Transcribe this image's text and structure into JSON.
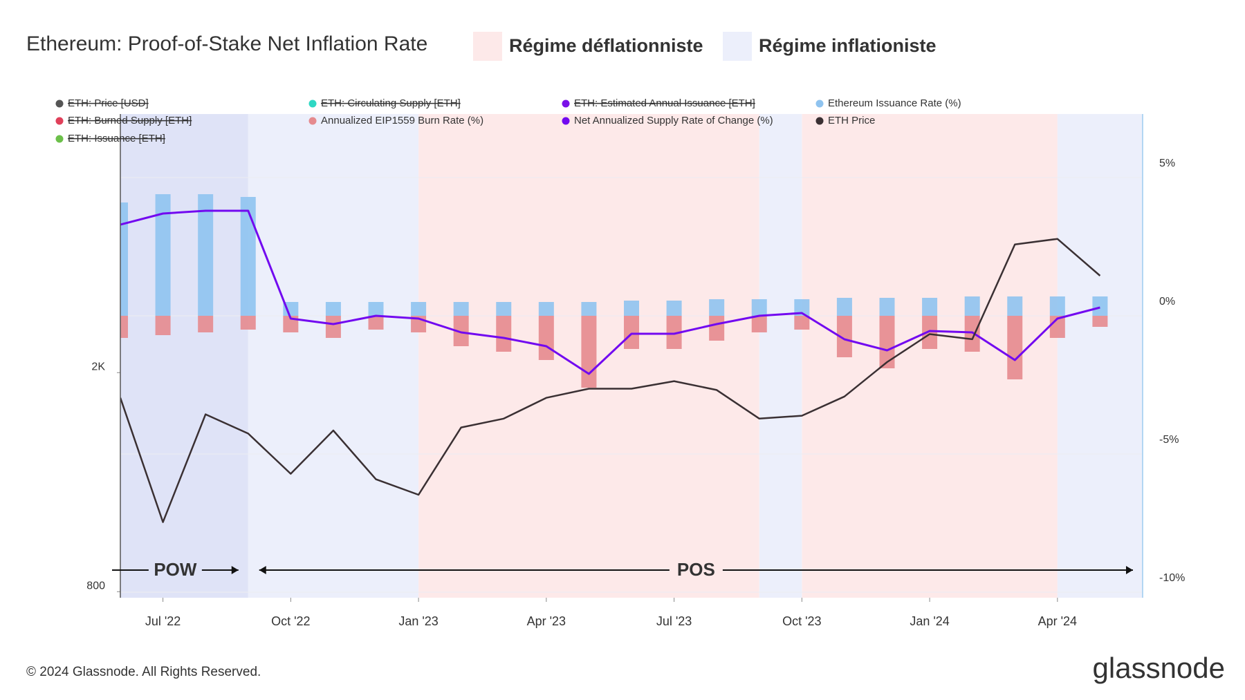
{
  "chart_data": {
    "type": "combo",
    "title": "Ethereum: Proof-of-Stake Net Inflation Rate",
    "regimes": [
      {
        "name": "Régime déflationniste",
        "color": "#fde9e9",
        "spans": [
          [
            "2023-01",
            "2023-09"
          ],
          [
            "2023-10",
            "2024-04"
          ]
        ]
      },
      {
        "name": "Régime inflationiste",
        "color": "#eceffb",
        "spans": [
          [
            "2022-09",
            "2023-01"
          ],
          [
            "2023-09",
            "2023-10"
          ],
          [
            "2024-04",
            "2024-06"
          ]
        ]
      }
    ],
    "annotations": [
      {
        "text": "POW",
        "start": "2022-06",
        "end": "2022-09",
        "color": "#dfe3f7"
      },
      {
        "text": "POS",
        "start": "2022-09",
        "end": "2024-06"
      }
    ],
    "hidden_series": [
      {
        "name": "ETH: Price [USD]",
        "color": "#555555"
      },
      {
        "name": "ETH: Circulating Supply [ETH]",
        "color": "#2fd8c4"
      },
      {
        "name": "ETH: Estimated Annual Issuance [ETH]",
        "color": "#7a12e8"
      },
      {
        "name": "ETH: Burned Supply [ETH]",
        "color": "#e0405a"
      },
      {
        "name": "ETH: Issuance [ETH]",
        "color": "#6cc04a"
      }
    ],
    "x": [
      "2022-06",
      "2022-07",
      "2022-08",
      "2022-09",
      "2022-10",
      "2022-11",
      "2022-12",
      "2023-01",
      "2023-02",
      "2023-03",
      "2023-04",
      "2023-05",
      "2023-06",
      "2023-07",
      "2023-08",
      "2023-09",
      "2023-10",
      "2023-11",
      "2023-12",
      "2024-01",
      "2024-02",
      "2024-03",
      "2024-04",
      "2024-05"
    ],
    "series": [
      {
        "name": "Ethereum Issuance Rate (%)",
        "type": "bar",
        "axis": "y2",
        "color": "#8fc3ef",
        "values": [
          4.1,
          4.4,
          4.4,
          4.3,
          0.5,
          0.5,
          0.5,
          0.5,
          0.5,
          0.5,
          0.5,
          0.5,
          0.55,
          0.55,
          0.6,
          0.6,
          0.6,
          0.65,
          0.65,
          0.65,
          0.7,
          0.7,
          0.7,
          0.7
        ]
      },
      {
        "name": "Annualized EIP1559 Burn Rate (%)",
        "type": "bar",
        "axis": "y2",
        "color": "#e58a8e",
        "values": [
          -0.8,
          -0.7,
          -0.6,
          -0.5,
          -0.6,
          -0.8,
          -0.5,
          -0.6,
          -1.1,
          -1.3,
          -1.6,
          -2.6,
          -1.2,
          -1.2,
          -0.9,
          -0.6,
          -0.5,
          -1.5,
          -1.9,
          -1.2,
          -1.3,
          -2.3,
          -0.8,
          -0.4
        ]
      },
      {
        "name": "Net Annualized Supply Rate of Change (%)",
        "type": "line",
        "axis": "y2",
        "color": "#7209f0",
        "values": [
          3.3,
          3.7,
          3.8,
          3.8,
          -0.1,
          -0.3,
          0.0,
          -0.1,
          -0.6,
          -0.8,
          -1.1,
          -2.1,
          -0.65,
          -0.65,
          -0.3,
          0.0,
          0.1,
          -0.85,
          -1.25,
          -0.55,
          -0.6,
          -1.6,
          -0.1,
          0.3
        ]
      },
      {
        "name": "ETH Price",
        "type": "line",
        "axis": "y",
        "color": "#3a3033",
        "values": [
          1800,
          1070,
          1680,
          1550,
          1310,
          1570,
          1280,
          1200,
          1590,
          1650,
          1800,
          1870,
          1870,
          1930,
          1860,
          1650,
          1670,
          1810,
          2090,
          2350,
          2300,
          3420,
          3500,
          3000
        ]
      }
    ],
    "xlim": [
      "2022-06",
      "2024-06"
    ],
    "xticks": [
      {
        "value": "2022-07",
        "label": "Jul '22"
      },
      {
        "value": "2022-10",
        "label": "Oct '22"
      },
      {
        "value": "2023-01",
        "label": "Jan '23"
      },
      {
        "value": "2023-04",
        "label": "Apr '23"
      },
      {
        "value": "2023-07",
        "label": "Jul '23"
      },
      {
        "value": "2023-10",
        "label": "Oct '23"
      },
      {
        "value": "2024-01",
        "label": "Jan '24"
      },
      {
        "value": "2024-04",
        "label": "Apr '24"
      }
    ],
    "ylim": [
      780,
      5900
    ],
    "yscale": "log",
    "yticks": [
      800,
      {
        "value": 2000,
        "label": "2K"
      }
    ],
    "y2lim": [
      -10.2,
      7.3
    ],
    "y2ticks": [
      {
        "value": 5,
        "label": "5%"
      },
      {
        "value": 0,
        "label": "0%"
      },
      {
        "value": -5,
        "label": "-5%"
      },
      {
        "value": -10,
        "label": "-10%"
      }
    ],
    "grid": true
  },
  "footer": {
    "copyright": "© 2024 Glassnode. All Rights Reserved.",
    "brand": "glassnode"
  }
}
